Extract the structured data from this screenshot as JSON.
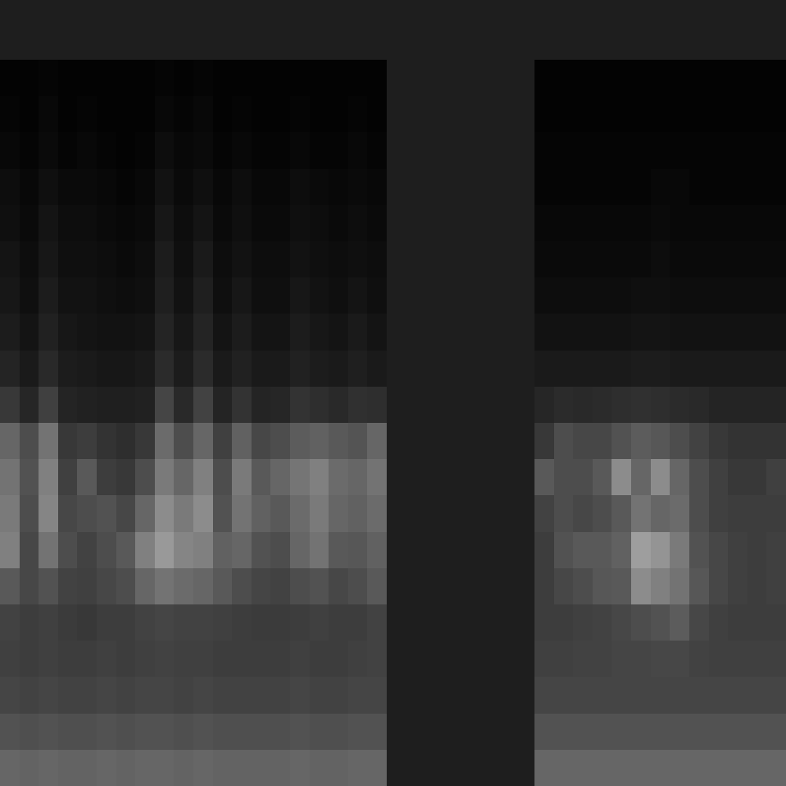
{
  "chart_data": [
    {
      "type": "heatmap",
      "tick_labels": false,
      "zlim": [
        0,
        100
      ],
      "cells": [
        [
          1,
          1,
          2,
          1,
          1,
          1,
          1,
          1,
          2,
          1,
          2,
          1,
          1,
          1,
          1,
          1,
          1,
          1,
          1,
          1
        ],
        [
          2,
          1,
          3,
          1,
          2,
          1,
          1,
          1,
          3,
          2,
          3,
          1,
          2,
          1,
          1,
          2,
          1,
          1,
          2,
          1
        ],
        [
          3,
          2,
          4,
          2,
          3,
          2,
          1,
          2,
          5,
          3,
          4,
          2,
          3,
          2,
          2,
          3,
          2,
          2,
          3,
          2
        ],
        [
          5,
          3,
          6,
          4,
          4,
          3,
          2,
          3,
          7,
          4,
          6,
          3,
          5,
          3,
          3,
          5,
          4,
          3,
          4,
          3
        ],
        [
          6,
          4,
          8,
          5,
          5,
          4,
          3,
          4,
          9,
          5,
          8,
          4,
          6,
          4,
          4,
          6,
          5,
          4,
          5,
          4
        ],
        [
          8,
          5,
          9,
          6,
          6,
          5,
          4,
          5,
          11,
          6,
          10,
          5,
          7,
          5,
          5,
          7,
          6,
          5,
          6,
          5
        ],
        [
          9,
          6,
          11,
          7,
          7,
          6,
          5,
          6,
          12,
          7,
          12,
          6,
          9,
          6,
          6,
          9,
          7,
          6,
          8,
          6
        ],
        [
          11,
          8,
          13,
          9,
          8,
          7,
          7,
          8,
          14,
          9,
          14,
          8,
          11,
          8,
          8,
          11,
          9,
          8,
          10,
          8
        ],
        [
          14,
          10,
          16,
          11,
          10,
          9,
          9,
          10,
          17,
          11,
          17,
          10,
          13,
          10,
          10,
          13,
          11,
          10,
          12,
          10
        ],
        [
          22,
          15,
          25,
          14,
          13,
          12,
          12,
          13,
          27,
          16,
          26,
          14,
          20,
          14,
          15,
          20,
          18,
          16,
          19,
          18
        ],
        [
          40,
          30,
          45,
          22,
          24,
          20,
          18,
          22,
          42,
          30,
          40,
          25,
          38,
          28,
          30,
          36,
          38,
          35,
          33,
          40
        ],
        [
          45,
          32,
          50,
          25,
          35,
          24,
          22,
          30,
          48,
          40,
          50,
          30,
          48,
          35,
          40,
          46,
          50,
          42,
          40,
          45
        ],
        [
          48,
          30,
          52,
          28,
          30,
          32,
          28,
          40,
          55,
          48,
          55,
          32,
          45,
          38,
          35,
          42,
          48,
          40,
          38,
          42
        ],
        [
          50,
          28,
          45,
          30,
          26,
          30,
          35,
          50,
          60,
          52,
          50,
          38,
          40,
          32,
          30,
          40,
          45,
          35,
          34,
          38
        ],
        [
          35,
          28,
          32,
          26,
          25,
          28,
          30,
          40,
          45,
          42,
          40,
          35,
          30,
          27,
          26,
          30,
          32,
          28,
          30,
          35
        ],
        [
          26,
          24,
          25,
          23,
          22,
          24,
          24,
          26,
          27,
          26,
          26,
          25,
          24,
          23,
          23,
          24,
          25,
          24,
          24,
          26
        ],
        [
          25,
          24,
          25,
          24,
          24,
          25,
          24,
          25,
          26,
          25,
          25,
          24,
          24,
          24,
          24,
          25,
          24,
          24,
          25,
          26
        ],
        [
          27,
          26,
          27,
          26,
          26,
          27,
          26,
          27,
          27,
          26,
          27,
          26,
          26,
          26,
          26,
          27,
          26,
          26,
          27,
          27
        ],
        [
          32,
          31,
          32,
          31,
          31,
          32,
          31,
          32,
          32,
          31,
          32,
          31,
          31,
          31,
          31,
          32,
          31,
          31,
          32,
          32
        ],
        [
          40,
          39,
          40,
          39,
          39,
          40,
          39,
          40,
          40,
          39,
          40,
          39,
          39,
          39,
          39,
          40,
          39,
          39,
          40,
          40
        ]
      ]
    },
    {
      "type": "heatmap",
      "tick_labels": false,
      "zlim": [
        0,
        100
      ],
      "cells": [
        [
          1,
          1,
          1,
          1,
          1,
          1,
          1,
          1,
          1,
          1,
          1,
          1,
          1
        ],
        [
          1,
          1,
          1,
          1,
          1,
          1,
          1,
          1,
          1,
          1,
          1,
          1,
          1
        ],
        [
          2,
          2,
          2,
          2,
          2,
          2,
          2,
          2,
          2,
          2,
          2,
          2,
          2
        ],
        [
          2,
          2,
          2,
          2,
          2,
          2,
          3,
          3,
          2,
          2,
          2,
          2,
          2
        ],
        [
          3,
          3,
          3,
          3,
          3,
          3,
          4,
          3,
          3,
          3,
          3,
          3,
          3
        ],
        [
          4,
          4,
          4,
          4,
          4,
          4,
          5,
          4,
          4,
          4,
          4,
          4,
          4
        ],
        [
          5,
          5,
          5,
          5,
          5,
          6,
          6,
          5,
          5,
          5,
          5,
          5,
          5
        ],
        [
          7,
          7,
          7,
          7,
          7,
          8,
          8,
          7,
          7,
          7,
          7,
          7,
          7
        ],
        [
          10,
          10,
          10,
          10,
          10,
          11,
          11,
          10,
          10,
          10,
          10,
          10,
          10
        ],
        [
          15,
          17,
          16,
          17,
          18,
          19,
          18,
          17,
          16,
          14,
          14,
          14,
          14
        ],
        [
          22,
          30,
          28,
          28,
          32,
          36,
          34,
          30,
          26,
          22,
          20,
          20,
          20
        ],
        [
          35,
          30,
          30,
          35,
          55,
          40,
          55,
          40,
          30,
          25,
          22,
          22,
          25
        ],
        [
          26,
          30,
          28,
          30,
          35,
          45,
          40,
          42,
          30,
          25,
          24,
          24,
          24
        ],
        [
          24,
          32,
          35,
          35,
          38,
          62,
          58,
          48,
          32,
          28,
          25,
          24,
          25
        ],
        [
          24,
          28,
          30,
          34,
          35,
          55,
          50,
          45,
          34,
          28,
          25,
          24,
          25
        ],
        [
          24,
          24,
          25,
          26,
          28,
          30,
          32,
          36,
          28,
          25,
          24,
          24,
          24
        ],
        [
          25,
          25,
          26,
          26,
          27,
          27,
          28,
          28,
          26,
          25,
          25,
          25,
          25
        ],
        [
          27,
          27,
          27,
          27,
          27,
          27,
          27,
          27,
          27,
          27,
          27,
          27,
          27
        ],
        [
          32,
          32,
          32,
          32,
          32,
          32,
          32,
          32,
          32,
          32,
          32,
          32,
          32
        ],
        [
          40,
          40,
          40,
          40,
          40,
          40,
          40,
          40,
          40,
          40,
          40,
          40,
          40
        ]
      ]
    }
  ]
}
